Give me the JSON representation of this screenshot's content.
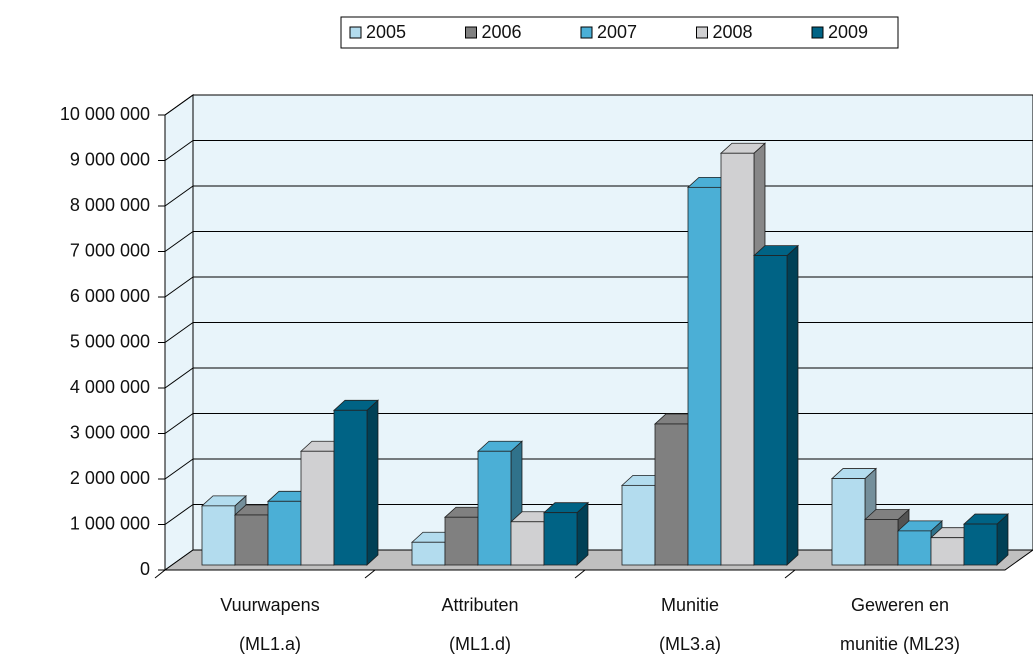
{
  "chart_data": {
    "type": "bar3d",
    "categories": [
      [
        "Vuurwapens",
        "(ML1.a)"
      ],
      [
        "Attributen",
        "(ML1.d)"
      ],
      [
        "Munitie",
        "(ML3.a)"
      ],
      [
        "Geweren en",
        "munitie (ML23)"
      ]
    ],
    "series": [
      {
        "name": "2005",
        "color": "#b3dcee",
        "values": [
          1300000,
          500000,
          1750000,
          1900000
        ]
      },
      {
        "name": "2006",
        "color": "#808080",
        "values": [
          1100000,
          1050000,
          3100000,
          1000000
        ]
      },
      {
        "name": "2007",
        "color": "#4bafd6",
        "values": [
          1400000,
          2500000,
          8300000,
          750000
        ]
      },
      {
        "name": "2008",
        "color": "#d0d0d2",
        "values": [
          2500000,
          950000,
          9050000,
          600000
        ]
      },
      {
        "name": "2009",
        "color": "#006385",
        "values": [
          3400000,
          1150000,
          6800000,
          900000
        ]
      }
    ],
    "ylim": [
      0,
      10000000
    ],
    "yticks": [
      0,
      {
        "value": 1000000,
        "label": "1 000 000"
      },
      {
        "value": 2000000,
        "label": "2 000 000"
      },
      {
        "value": 3000000,
        "label": "3 000 000"
      },
      {
        "value": 4000000,
        "label": "4 000 000"
      },
      {
        "value": 5000000,
        "label": "5 000 000"
      },
      {
        "value": 6000000,
        "label": "6 000 000"
      },
      {
        "value": 7000000,
        "label": "7 000 000"
      },
      {
        "value": 8000000,
        "label": "8 000 000"
      },
      {
        "value": 9000000,
        "label": "9 000 000"
      },
      {
        "value": 10000000,
        "label": "10 000 000"
      }
    ],
    "grid": true,
    "legend": "top"
  }
}
